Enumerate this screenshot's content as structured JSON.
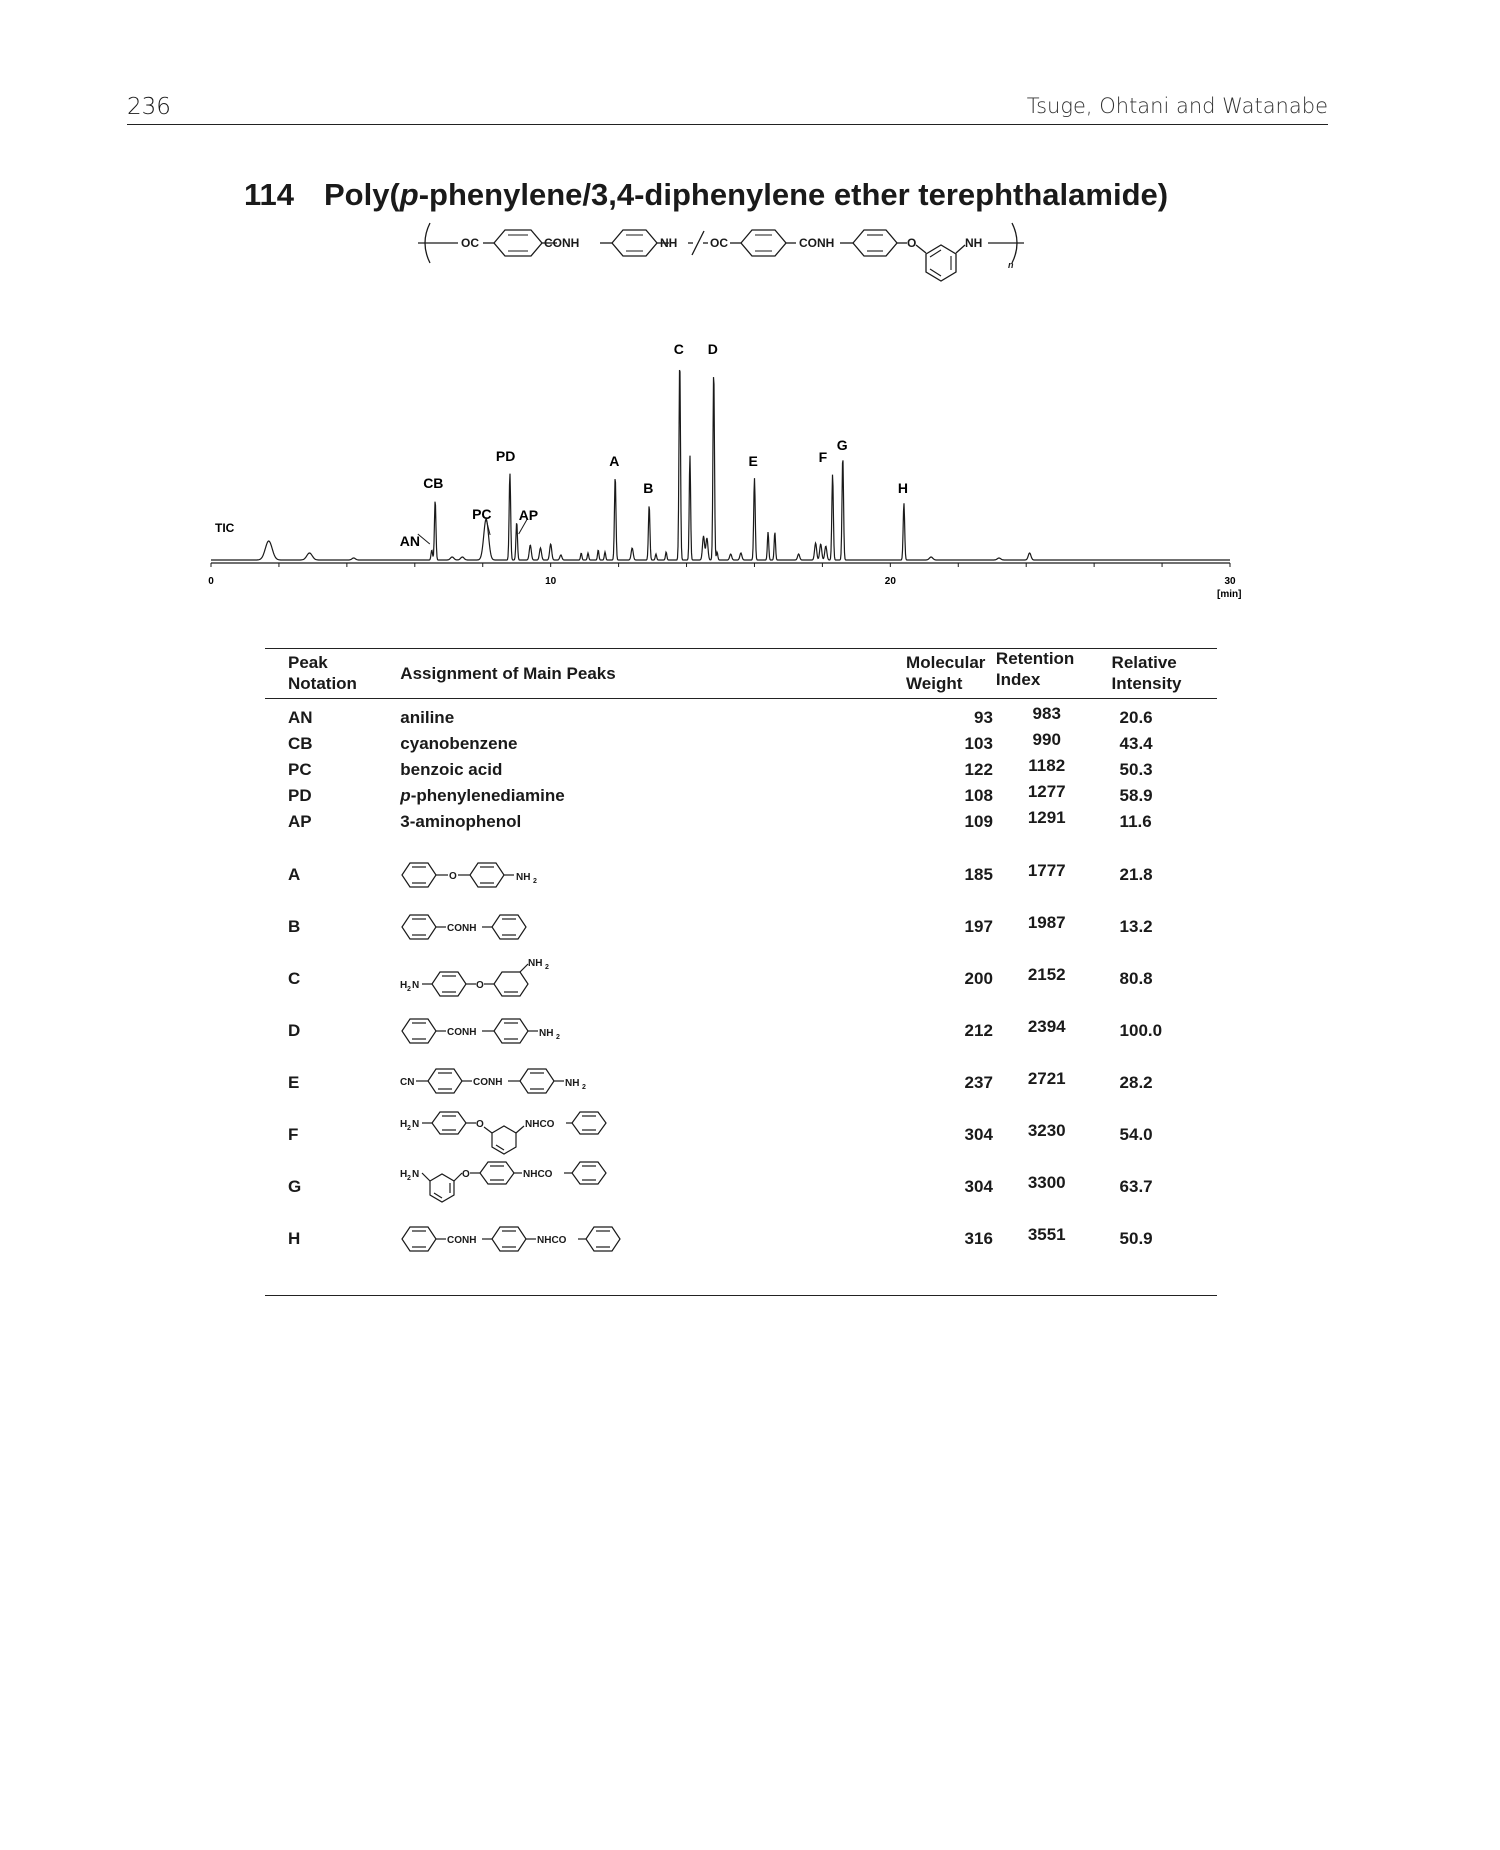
{
  "header": {
    "page_number": "236",
    "running_head": "Tsuge, Ohtani and Watanabe"
  },
  "entry": {
    "number": "114",
    "title_before": "Poly(",
    "title_italic": "p",
    "title_after": "-phenylene/3,4-diphenylene ether terephthalamide)"
  },
  "repeat_unit": {
    "groups": [
      "OC",
      "CONH",
      "NH",
      "OC",
      "CONH",
      "O",
      "NH"
    ],
    "subscript": "n"
  },
  "chart_data": {
    "type": "line",
    "trace_label": "TIC",
    "xlabel": "[min]",
    "xlim": [
      0,
      30
    ],
    "xticks": [
      "0",
      "10",
      "20",
      "30"
    ],
    "peaks": [
      {
        "label": "AN",
        "t": 6.5,
        "h": 10
      },
      {
        "label": "CB",
        "t": 6.6,
        "h": 60
      },
      {
        "label": "PC",
        "t": 8.1,
        "h": 41
      },
      {
        "label": "PD",
        "t": 8.8,
        "h": 87
      },
      {
        "label": "AP",
        "t": 9.0,
        "h": 38
      },
      {
        "label": "A",
        "t": 11.9,
        "h": 84
      },
      {
        "label": "B",
        "t": 12.9,
        "h": 55
      },
      {
        "label": "C",
        "t": 13.8,
        "h": 200
      },
      {
        "label": "D",
        "t": 14.8,
        "h": 190
      },
      {
        "label": "E",
        "t": 16.0,
        "h": 82
      },
      {
        "label": "F",
        "t": 18.3,
        "h": 86
      },
      {
        "label": "G",
        "t": 18.6,
        "h": 104
      },
      {
        "label": "H",
        "t": 20.4,
        "h": 57
      }
    ]
  },
  "table": {
    "headers": {
      "notation": [
        "Peak",
        "Notation"
      ],
      "assignment": "Assignment of Main Peaks",
      "mw": [
        "Molecular",
        "Weight"
      ],
      "ri": [
        "Retention",
        "Index"
      ],
      "intensity": [
        "Relative",
        "Intensity"
      ]
    },
    "rows": [
      {
        "notation": "AN",
        "name": "aniline",
        "mw": "93",
        "ri": "983",
        "intensity": "20.6"
      },
      {
        "notation": "CB",
        "name": "cyanobenzene",
        "mw": "103",
        "ri": "990",
        "intensity": "43.4"
      },
      {
        "notation": "PC",
        "name": "benzoic acid",
        "mw": "122",
        "ri": "1182",
        "intensity": "50.3"
      },
      {
        "notation": "PD",
        "name_italic": "p",
        "name": "-phenylenediamine",
        "mw": "108",
        "ri": "1277",
        "intensity": "58.9"
      },
      {
        "notation": "AP",
        "name": "3-aminophenol",
        "mw": "109",
        "ri": "1291",
        "intensity": "11.6"
      },
      {
        "notation": "A",
        "mw": "185",
        "ri": "1777",
        "intensity": "21.8"
      },
      {
        "notation": "B",
        "mw": "197",
        "ri": "1987",
        "intensity": "13.2"
      },
      {
        "notation": "C",
        "mw": "200",
        "ri": "2152",
        "intensity": "80.8"
      },
      {
        "notation": "D",
        "mw": "212",
        "ri": "2394",
        "intensity": "100.0"
      },
      {
        "notation": "E",
        "mw": "237",
        "ri": "2721",
        "intensity": "28.2"
      },
      {
        "notation": "F",
        "mw": "304",
        "ri": "3230",
        "intensity": "54.0"
      },
      {
        "notation": "G",
        "mw": "304",
        "ri": "3300",
        "intensity": "63.7"
      },
      {
        "notation": "H",
        "mw": "316",
        "ri": "3551",
        "intensity": "50.9"
      }
    ]
  },
  "structure_labels": {
    "o": "O",
    "nh2": "NH",
    "sub2": "2",
    "h2n_h": "H",
    "h2n_n": "N",
    "conh": "CONH",
    "cn": "CN",
    "nhco": "NHCO"
  }
}
